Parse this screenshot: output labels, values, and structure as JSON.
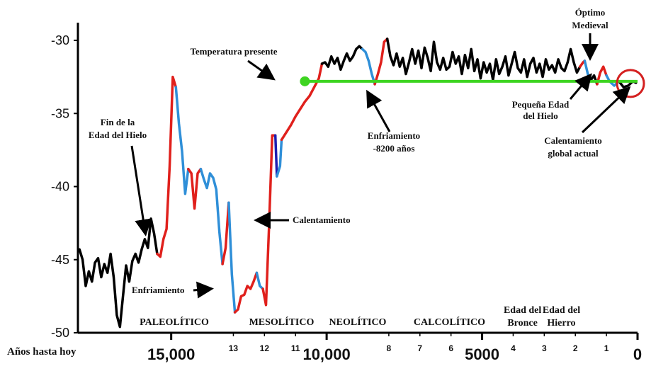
{
  "chart_data": {
    "type": "line",
    "xlabel": "Años hasta hoy",
    "ylim": [
      -50,
      -28
    ],
    "xlim": [
      18000,
      0
    ],
    "y_ticks": [
      -30,
      -35,
      -40,
      -45,
      -50
    ],
    "x_ticks_big": [
      {
        "value": 15000,
        "label": "15,000"
      },
      {
        "value": 10000,
        "label": "10,000"
      },
      {
        "value": 5000,
        "label": "5000"
      },
      {
        "value": 0,
        "label": "0"
      }
    ],
    "x_ticks_small": [
      {
        "value": 13000,
        "label": "13"
      },
      {
        "value": 12000,
        "label": "12"
      },
      {
        "value": 11000,
        "label": "11"
      },
      {
        "value": 8000,
        "label": "8"
      },
      {
        "value": 7000,
        "label": "7"
      },
      {
        "value": 6000,
        "label": "6"
      },
      {
        "value": 4000,
        "label": "4"
      },
      {
        "value": 3000,
        "label": "3"
      },
      {
        "value": 2000,
        "label": "2"
      },
      {
        "value": 1000,
        "label": "1"
      }
    ],
    "colors": {
      "black": "#000000",
      "red": "#e0201c",
      "blue": "#2f8fd8",
      "darkblue": "#1e1eb0",
      "green": "#3ed421",
      "circle": "#d42020"
    },
    "series": [
      {
        "color": "black",
        "points": [
          [
            17950,
            -44.3
          ],
          [
            17850,
            -45
          ],
          [
            17750,
            -46.8
          ],
          [
            17650,
            -45.8
          ],
          [
            17550,
            -46.5
          ],
          [
            17450,
            -45.2
          ],
          [
            17350,
            -44.9
          ],
          [
            17250,
            -46.2
          ],
          [
            17150,
            -45.3
          ],
          [
            17050,
            -45.9
          ],
          [
            16950,
            -44.6
          ],
          [
            16850,
            -46.2
          ],
          [
            16750,
            -48.8
          ],
          [
            16650,
            -49.6
          ],
          [
            16550,
            -47.5
          ],
          [
            16450,
            -45.4
          ],
          [
            16350,
            -46.5
          ],
          [
            16250,
            -45.1
          ],
          [
            16150,
            -44.6
          ],
          [
            16050,
            -45.2
          ],
          [
            15950,
            -44.3
          ],
          [
            15850,
            -43.6
          ],
          [
            15750,
            -44.2
          ],
          [
            15650,
            -42.2
          ],
          [
            15550,
            -43.2
          ],
          [
            15450,
            -44.6
          ]
        ]
      },
      {
        "color": "red",
        "points": [
          [
            15450,
            -44.6
          ],
          [
            15350,
            -44.8
          ],
          [
            15250,
            -43.6
          ],
          [
            15150,
            -42.9
          ],
          [
            15050,
            -38.6
          ],
          [
            14950,
            -32.5
          ],
          [
            14850,
            -33.2
          ]
        ]
      },
      {
        "color": "blue",
        "points": [
          [
            14850,
            -33.2
          ],
          [
            14750,
            -35.7
          ],
          [
            14650,
            -37.6
          ],
          [
            14550,
            -40.5
          ],
          [
            14450,
            -38.8
          ]
        ]
      },
      {
        "color": "red",
        "points": [
          [
            14450,
            -38.8
          ],
          [
            14350,
            -39.1
          ],
          [
            14250,
            -41.5
          ],
          [
            14150,
            -39.1
          ],
          [
            14050,
            -38.8
          ]
        ]
      },
      {
        "color": "blue",
        "points": [
          [
            14050,
            -38.8
          ],
          [
            13950,
            -39.5
          ],
          [
            13850,
            -40.1
          ],
          [
            13750,
            -39.1
          ],
          [
            13650,
            -39.4
          ],
          [
            13550,
            -40.2
          ],
          [
            13450,
            -43.1
          ],
          [
            13350,
            -45.3
          ]
        ]
      },
      {
        "color": "red",
        "points": [
          [
            13350,
            -45.3
          ],
          [
            13250,
            -44.2
          ],
          [
            13150,
            -41.1
          ]
        ]
      },
      {
        "color": "blue",
        "points": [
          [
            13150,
            -41.1
          ],
          [
            13050,
            -46
          ],
          [
            12950,
            -48.6
          ]
        ]
      },
      {
        "color": "red",
        "points": [
          [
            12950,
            -48.6
          ],
          [
            12850,
            -48.4
          ],
          [
            12750,
            -47.5
          ],
          [
            12650,
            -47.4
          ],
          [
            12550,
            -46.8
          ],
          [
            12450,
            -47
          ],
          [
            12350,
            -46.5
          ],
          [
            12250,
            -45.9
          ]
        ]
      },
      {
        "color": "blue",
        "points": [
          [
            12250,
            -45.9
          ],
          [
            12150,
            -46.8
          ],
          [
            12050,
            -47
          ]
        ]
      },
      {
        "color": "red",
        "points": [
          [
            12050,
            -47
          ],
          [
            11950,
            -48.1
          ],
          [
            11850,
            -42.6
          ],
          [
            11750,
            -36.5
          ],
          [
            11650,
            -36.5
          ]
        ]
      },
      {
        "color": "darkblue",
        "points": [
          [
            11650,
            -36.5
          ],
          [
            11600,
            -39.3
          ]
        ]
      },
      {
        "color": "blue",
        "points": [
          [
            11600,
            -39.3
          ],
          [
            11500,
            -38.6
          ],
          [
            11450,
            -36.8
          ]
        ]
      },
      {
        "color": "red",
        "points": [
          [
            11450,
            -36.8
          ],
          [
            11300,
            -36.3
          ],
          [
            11150,
            -35.8
          ],
          [
            11000,
            -35.2
          ],
          [
            10850,
            -34.7
          ],
          [
            10700,
            -34.2
          ],
          [
            10550,
            -33.8
          ],
          [
            10400,
            -33.2
          ],
          [
            10250,
            -32.6
          ],
          [
            10150,
            -31.6
          ]
        ]
      },
      {
        "color": "black",
        "points": [
          [
            10150,
            -31.6
          ],
          [
            10050,
            -31.5
          ],
          [
            9950,
            -31.8
          ],
          [
            9850,
            -31.1
          ],
          [
            9750,
            -31.6
          ],
          [
            9650,
            -31.2
          ],
          [
            9550,
            -32
          ],
          [
            9450,
            -31.4
          ],
          [
            9350,
            -30.9
          ],
          [
            9250,
            -31.4
          ],
          [
            9150,
            -31.1
          ],
          [
            9050,
            -30.6
          ],
          [
            8950,
            -30.4
          ],
          [
            8850,
            -30.6
          ]
        ]
      },
      {
        "color": "blue",
        "points": [
          [
            8850,
            -30.6
          ],
          [
            8750,
            -30.8
          ],
          [
            8650,
            -31.4
          ],
          [
            8550,
            -32.3
          ],
          [
            8450,
            -33
          ]
        ]
      },
      {
        "color": "red",
        "points": [
          [
            8450,
            -33
          ],
          [
            8350,
            -32.3
          ],
          [
            8250,
            -31.5
          ],
          [
            8150,
            -30.1
          ],
          [
            8050,
            -29.9
          ]
        ]
      },
      {
        "color": "black",
        "points": [
          [
            8050,
            -29.9
          ],
          [
            7950,
            -31.1
          ],
          [
            7850,
            -31.7
          ],
          [
            7750,
            -30.9
          ],
          [
            7650,
            -31.8
          ],
          [
            7550,
            -31.2
          ],
          [
            7450,
            -32.3
          ],
          [
            7350,
            -31.5
          ],
          [
            7250,
            -30.6
          ],
          [
            7150,
            -31.6
          ],
          [
            7050,
            -30.7
          ],
          [
            6950,
            -31.9
          ],
          [
            6850,
            -30.5
          ],
          [
            6750,
            -31.2
          ],
          [
            6650,
            -32.1
          ],
          [
            6550,
            -30.1
          ],
          [
            6450,
            -31.5
          ],
          [
            6350,
            -32
          ],
          [
            6250,
            -31.2
          ],
          [
            6150,
            -32
          ],
          [
            6050,
            -31.8
          ],
          [
            5950,
            -30.8
          ],
          [
            5850,
            -31.6
          ],
          [
            5750,
            -31.1
          ],
          [
            5650,
            -32.3
          ],
          [
            5550,
            -31
          ],
          [
            5450,
            -31.9
          ],
          [
            5350,
            -30.6
          ],
          [
            5250,
            -32.1
          ],
          [
            5150,
            -31.3
          ],
          [
            5050,
            -32.6
          ],
          [
            4950,
            -31.5
          ],
          [
            4850,
            -32.2
          ],
          [
            4750,
            -31.6
          ],
          [
            4650,
            -32.7
          ],
          [
            4550,
            -31.3
          ],
          [
            4450,
            -32.3
          ],
          [
            4350,
            -31.8
          ],
          [
            4250,
            -31.1
          ],
          [
            4150,
            -32.4
          ],
          [
            4050,
            -31.6
          ],
          [
            3950,
            -30.8
          ],
          [
            3850,
            -31.9
          ],
          [
            3750,
            -32.2
          ],
          [
            3650,
            -31.3
          ],
          [
            3550,
            -32.5
          ],
          [
            3450,
            -31.6
          ],
          [
            3350,
            -31.2
          ],
          [
            3250,
            -32.2
          ],
          [
            3150,
            -31.6
          ],
          [
            3050,
            -32.5
          ],
          [
            2950,
            -31.3
          ],
          [
            2850,
            -32
          ],
          [
            2750,
            -31.7
          ],
          [
            2650,
            -32.2
          ],
          [
            2550,
            -31.3
          ],
          [
            2450,
            -31.9
          ],
          [
            2350,
            -32.1
          ],
          [
            2250,
            -31.5
          ],
          [
            2150,
            -30.6
          ],
          [
            2050,
            -31.5
          ],
          [
            1950,
            -32.2
          ],
          [
            1850,
            -31.8
          ]
        ]
      },
      {
        "color": "red",
        "points": [
          [
            1850,
            -31.8
          ],
          [
            1750,
            -31.5
          ],
          [
            1700,
            -31.4
          ]
        ]
      },
      {
        "color": "blue",
        "points": [
          [
            1700,
            -31.4
          ],
          [
            1600,
            -32.3
          ],
          [
            1500,
            -32.7
          ]
        ]
      },
      {
        "color": "black",
        "points": [
          [
            1500,
            -32.7
          ],
          [
            1400,
            -32.4
          ],
          [
            1300,
            -33
          ]
        ]
      },
      {
        "color": "red",
        "points": [
          [
            1300,
            -33
          ],
          [
            1200,
            -32.2
          ],
          [
            1100,
            -31.8
          ],
          [
            1000,
            -32.4
          ]
        ]
      },
      {
        "color": "blue",
        "points": [
          [
            1000,
            -32.4
          ],
          [
            900,
            -32.8
          ],
          [
            750,
            -33.1
          ],
          [
            600,
            -32.8
          ]
        ]
      },
      {
        "color": "black",
        "points": [
          [
            600,
            -32.8
          ],
          [
            450,
            -33.2
          ],
          [
            300,
            -33.1
          ],
          [
            150,
            -32.8
          ],
          [
            50,
            -32.9
          ]
        ]
      }
    ],
    "reference_line": {
      "value": -32.8,
      "x_from": 10700,
      "x_to": 0
    },
    "eras": [
      {
        "label": "PALEOLÍTICO",
        "x": 14900
      },
      {
        "label": "MESOLÍTICO",
        "x": 11450
      },
      {
        "label": "NEOLÍTICO",
        "x": 9000
      },
      {
        "label": "CALCOLÍTICO",
        "x": 6050
      }
    ],
    "era_multi": [
      {
        "lines": [
          "Edad del",
          "Bronce"
        ],
        "x": 3700
      },
      {
        "lines": [
          "Edad del",
          "Hierro"
        ],
        "x": 2450
      }
    ],
    "annotations": [
      {
        "lines": [
          "Fin de la",
          "Edad del Hielo"
        ]
      },
      {
        "lines": [
          "Temperatura presente"
        ]
      },
      {
        "lines": [
          "Calentamiento"
        ]
      },
      {
        "lines": [
          "Enfriamiento"
        ]
      },
      {
        "lines": [
          "Enfriamiento",
          "-8200 años"
        ]
      },
      {
        "lines": [
          "Óptimo",
          "Medieval"
        ]
      },
      {
        "lines": [
          "Pequeña Edad",
          "del Hielo"
        ]
      },
      {
        "lines": [
          "Calentamiento",
          "global actual"
        ]
      }
    ]
  }
}
